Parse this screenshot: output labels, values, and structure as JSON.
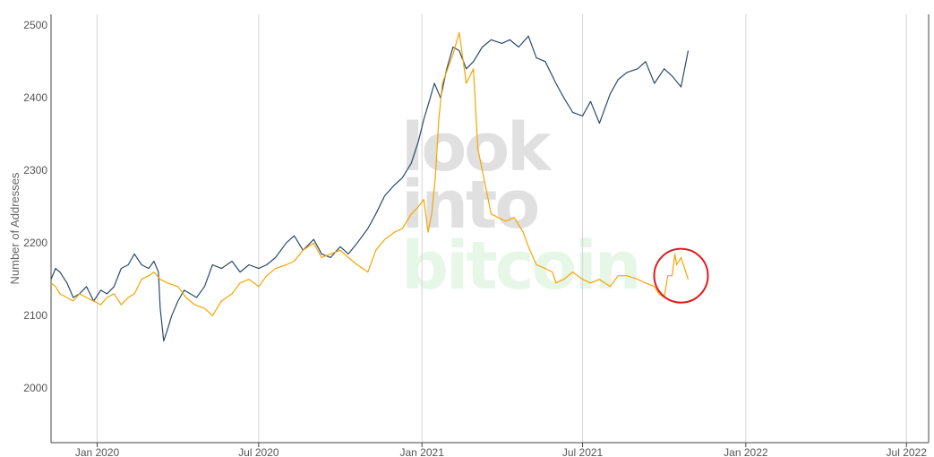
{
  "chart_data": {
    "type": "line",
    "title": "",
    "xlabel": "",
    "ylabel": "Number of Addresses",
    "y_ticks": [
      2000,
      2100,
      2200,
      2300,
      2400,
      2500
    ],
    "ylim": [
      1925,
      2515
    ],
    "xlim": [
      "2019-11-10",
      "2022-07-26"
    ],
    "x_ticks": [
      {
        "date": "2020-01-01",
        "label": "Jan 2020"
      },
      {
        "date": "2020-07-01",
        "label": "Jul 2020"
      },
      {
        "date": "2021-01-01",
        "label": "Jan 2021"
      },
      {
        "date": "2021-07-01",
        "label": "Jul 2021"
      },
      {
        "date": "2022-01-01",
        "label": "Jan 2022"
      },
      {
        "date": "2022-07-01",
        "label": "Jul 2022"
      }
    ],
    "grid": "vertical",
    "legend": "none",
    "watermark": [
      "look",
      "into",
      "bitcoin"
    ],
    "annotation": {
      "shape": "circle",
      "color": "#e31a1c",
      "center_x": "2021-10-20",
      "center_y": 2155
    },
    "series": [
      {
        "color": "#2b4a6b",
        "x": [
          "2019-11-10",
          "2019-11-15",
          "2019-11-20",
          "2019-11-28",
          "2019-12-05",
          "2019-12-12",
          "2019-12-20",
          "2019-12-28",
          "2020-01-05",
          "2020-01-12",
          "2020-01-20",
          "2020-01-28",
          "2020-02-05",
          "2020-02-12",
          "2020-02-20",
          "2020-02-28",
          "2020-03-05",
          "2020-03-10",
          "2020-03-12",
          "2020-03-16",
          "2020-03-20",
          "2020-03-25",
          "2020-04-01",
          "2020-04-08",
          "2020-04-15",
          "2020-04-22",
          "2020-05-01",
          "2020-05-10",
          "2020-05-20",
          "2020-06-01",
          "2020-06-10",
          "2020-06-20",
          "2020-07-01",
          "2020-07-10",
          "2020-07-20",
          "2020-08-01",
          "2020-08-10",
          "2020-08-20",
          "2020-09-01",
          "2020-09-10",
          "2020-09-20",
          "2020-10-01",
          "2020-10-10",
          "2020-10-20",
          "2020-11-01",
          "2020-11-10",
          "2020-11-20",
          "2020-12-01",
          "2020-12-10",
          "2020-12-20",
          "2020-12-28",
          "2021-01-03",
          "2021-01-08",
          "2021-01-15",
          "2021-01-22",
          "2021-01-29",
          "2021-02-05",
          "2021-02-12",
          "2021-02-20",
          "2021-02-28",
          "2021-03-10",
          "2021-03-20",
          "2021-04-01",
          "2021-04-10",
          "2021-04-20",
          "2021-05-01",
          "2021-05-10",
          "2021-05-20",
          "2021-06-01",
          "2021-06-10",
          "2021-06-20",
          "2021-07-01",
          "2021-07-10",
          "2021-07-20",
          "2021-08-01",
          "2021-08-10",
          "2021-08-20",
          "2021-09-01",
          "2021-09-10",
          "2021-09-20",
          "2021-10-01",
          "2021-10-10",
          "2021-10-20",
          "2021-10-28"
        ],
        "values": [
          2150,
          2165,
          2160,
          2145,
          2125,
          2130,
          2140,
          2120,
          2135,
          2130,
          2140,
          2165,
          2170,
          2185,
          2170,
          2165,
          2175,
          2160,
          2110,
          2065,
          2080,
          2100,
          2120,
          2135,
          2130,
          2125,
          2140,
          2170,
          2165,
          2175,
          2160,
          2170,
          2165,
          2170,
          2180,
          2200,
          2210,
          2190,
          2205,
          2185,
          2180,
          2195,
          2185,
          2200,
          2220,
          2240,
          2265,
          2280,
          2290,
          2310,
          2340,
          2370,
          2390,
          2420,
          2400,
          2440,
          2470,
          2465,
          2440,
          2450,
          2470,
          2480,
          2475,
          2480,
          2470,
          2485,
          2455,
          2450,
          2420,
          2400,
          2380,
          2375,
          2395,
          2365,
          2405,
          2425,
          2435,
          2440,
          2450,
          2420,
          2440,
          2430,
          2415,
          2465
        ]
      },
      {
        "color": "#f5a500",
        "x": [
          "2019-11-10",
          "2019-11-15",
          "2019-11-20",
          "2019-11-28",
          "2019-12-05",
          "2019-12-12",
          "2019-12-20",
          "2019-12-28",
          "2020-01-05",
          "2020-01-12",
          "2020-01-20",
          "2020-01-28",
          "2020-02-05",
          "2020-02-12",
          "2020-02-20",
          "2020-02-28",
          "2020-03-05",
          "2020-03-12",
          "2020-03-20",
          "2020-04-01",
          "2020-04-10",
          "2020-04-20",
          "2020-05-01",
          "2020-05-10",
          "2020-05-20",
          "2020-06-01",
          "2020-06-10",
          "2020-06-20",
          "2020-07-01",
          "2020-07-10",
          "2020-07-20",
          "2020-08-01",
          "2020-08-10",
          "2020-08-20",
          "2020-09-01",
          "2020-09-10",
          "2020-09-20",
          "2020-10-01",
          "2020-10-10",
          "2020-10-20",
          "2020-11-01",
          "2020-11-10",
          "2020-11-20",
          "2020-12-01",
          "2020-12-10",
          "2020-12-20",
          "2020-12-28",
          "2021-01-03",
          "2021-01-08",
          "2021-01-12",
          "2021-01-16",
          "2021-01-20",
          "2021-01-24",
          "2021-01-30",
          "2021-02-05",
          "2021-02-12",
          "2021-02-20",
          "2021-02-28",
          "2021-03-05",
          "2021-03-10",
          "2021-03-15",
          "2021-03-20",
          "2021-03-28",
          "2021-04-05",
          "2021-04-15",
          "2021-04-25",
          "2021-05-01",
          "2021-05-10",
          "2021-05-20",
          "2021-05-28",
          "2021-06-01",
          "2021-06-10",
          "2021-06-20",
          "2021-07-01",
          "2021-07-10",
          "2021-07-20",
          "2021-08-01",
          "2021-08-10",
          "2021-08-20",
          "2021-09-01",
          "2021-09-10",
          "2021-09-20",
          "2021-09-25",
          "2021-10-01",
          "2021-10-05",
          "2021-10-10",
          "2021-10-13",
          "2021-10-15",
          "2021-10-20",
          "2021-10-24",
          "2021-10-28"
        ],
        "values": [
          2145,
          2140,
          2130,
          2125,
          2120,
          2130,
          2125,
          2120,
          2115,
          2125,
          2130,
          2115,
          2125,
          2130,
          2150,
          2155,
          2160,
          2150,
          2145,
          2140,
          2125,
          2115,
          2110,
          2100,
          2120,
          2130,
          2145,
          2150,
          2140,
          2155,
          2165,
          2170,
          2175,
          2190,
          2200,
          2180,
          2185,
          2190,
          2180,
          2170,
          2160,
          2190,
          2205,
          2215,
          2220,
          2240,
          2250,
          2260,
          2215,
          2240,
          2290,
          2370,
          2420,
          2440,
          2460,
          2490,
          2420,
          2440,
          2330,
          2300,
          2270,
          2240,
          2235,
          2230,
          2235,
          2215,
          2195,
          2170,
          2165,
          2160,
          2145,
          2150,
          2160,
          2150,
          2145,
          2150,
          2140,
          2155,
          2155,
          2150,
          2145,
          2140,
          2130,
          2125,
          2155,
          2155,
          2185,
          2170,
          2180,
          2165,
          2150
        ]
      }
    ]
  }
}
